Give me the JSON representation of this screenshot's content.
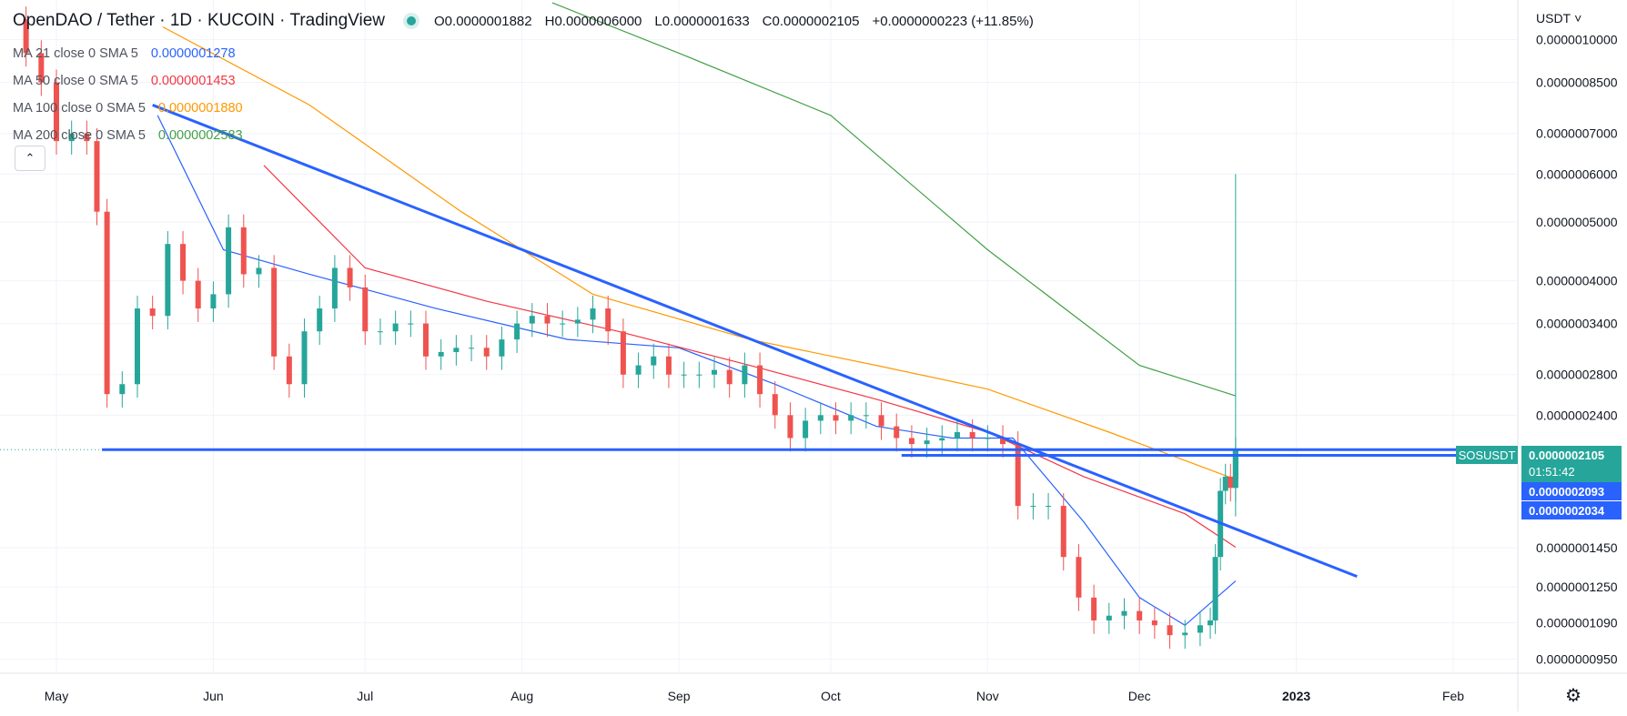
{
  "header": {
    "title": "OpenDAO / Tether · 1D · KUCOIN · TradingView",
    "ohlc": {
      "open": "O0.0000001882",
      "high": "H0.0000006000",
      "low": "L0.0000001633",
      "close": "C0.0000002105",
      "change": "+0.0000000223 (+11.85%)"
    },
    "currency": "USDT"
  },
  "legend": [
    {
      "label": "MA 21 close 0 SMA 5",
      "value": "0.0000001278",
      "color": "#2962ff"
    },
    {
      "label": "MA 50 close 0 SMA 5",
      "value": "0.0000001453",
      "color": "#f23645"
    },
    {
      "label": "MA 100 close 0 SMA 5",
      "value": "0.0000001880",
      "color": "#ff9800"
    },
    {
      "label": "MA 200 close 0 SMA 5",
      "value": "0.0000002583",
      "color": "#43a047"
    }
  ],
  "price_labels": {
    "symbol": "SOSUSDT",
    "last": "0.0000002105",
    "countdown": "01:51:42",
    "line1": "0.0000002093",
    "line2": "0.0000002034"
  },
  "chart_data": {
    "type": "candlestick",
    "y_scale": "log",
    "ylim": [
      9e-08,
      1.1e-06
    ],
    "y_ticks": [
      "0.0000010000",
      "0.0000008500",
      "0.0000007000",
      "0.0000006000",
      "0.0000005000",
      "0.0000004000",
      "0.0000003400",
      "0.0000002800",
      "0.0000002400",
      "0.0000001450",
      "0.0000001250",
      "0.0000001090",
      "0.0000000950"
    ],
    "x_ticks": [
      "May",
      "Jun",
      "Jul",
      "Aug",
      "Sep",
      "Oct",
      "Nov",
      "Dec",
      "2023",
      "Feb"
    ],
    "x_tick_dates": [
      "2022-05-01",
      "2022-06-01",
      "2022-07-01",
      "2022-08-01",
      "2022-09-01",
      "2022-10-01",
      "2022-11-01",
      "2022-12-01",
      "2023-01-01",
      "2023-02-01"
    ],
    "candles_close": [
      [
        "2022-04-22",
        1.08e-06
      ],
      [
        "2022-04-25",
        9.5e-07
      ],
      [
        "2022-04-28",
        8.5e-07
      ],
      [
        "2022-05-01",
        6.8e-07
      ],
      [
        "2022-05-04",
        7e-07
      ],
      [
        "2022-05-07",
        6.8e-07
      ],
      [
        "2022-05-09",
        5.2e-07
      ],
      [
        "2022-05-11",
        2.6e-07
      ],
      [
        "2022-05-14",
        2.7e-07
      ],
      [
        "2022-05-17",
        3.6e-07
      ],
      [
        "2022-05-20",
        3.5e-07
      ],
      [
        "2022-05-23",
        4.6e-07
      ],
      [
        "2022-05-26",
        4e-07
      ],
      [
        "2022-05-29",
        3.6e-07
      ],
      [
        "2022-06-01",
        3.8e-07
      ],
      [
        "2022-06-04",
        4.9e-07
      ],
      [
        "2022-06-07",
        4.1e-07
      ],
      [
        "2022-06-10",
        4.2e-07
      ],
      [
        "2022-06-13",
        3e-07
      ],
      [
        "2022-06-16",
        2.7e-07
      ],
      [
        "2022-06-19",
        3.3e-07
      ],
      [
        "2022-06-22",
        3.6e-07
      ],
      [
        "2022-06-25",
        4.2e-07
      ],
      [
        "2022-06-28",
        3.9e-07
      ],
      [
        "2022-07-01",
        3.3e-07
      ],
      [
        "2022-07-04",
        3.3e-07
      ],
      [
        "2022-07-07",
        3.4e-07
      ],
      [
        "2022-07-10",
        3.4e-07
      ],
      [
        "2022-07-13",
        3e-07
      ],
      [
        "2022-07-16",
        3.05e-07
      ],
      [
        "2022-07-19",
        3.1e-07
      ],
      [
        "2022-07-22",
        3.1e-07
      ],
      [
        "2022-07-25",
        3e-07
      ],
      [
        "2022-07-28",
        3.2e-07
      ],
      [
        "2022-07-31",
        3.4e-07
      ],
      [
        "2022-08-03",
        3.5e-07
      ],
      [
        "2022-08-06",
        3.4e-07
      ],
      [
        "2022-08-09",
        3.4e-07
      ],
      [
        "2022-08-12",
        3.45e-07
      ],
      [
        "2022-08-15",
        3.6e-07
      ],
      [
        "2022-08-18",
        3.3e-07
      ],
      [
        "2022-08-21",
        2.8e-07
      ],
      [
        "2022-08-24",
        2.9e-07
      ],
      [
        "2022-08-27",
        3e-07
      ],
      [
        "2022-08-30",
        2.8e-07
      ],
      [
        "2022-09-02",
        2.8e-07
      ],
      [
        "2022-09-05",
        2.8e-07
      ],
      [
        "2022-09-08",
        2.85e-07
      ],
      [
        "2022-09-11",
        2.7e-07
      ],
      [
        "2022-09-14",
        2.9e-07
      ],
      [
        "2022-09-17",
        2.6e-07
      ],
      [
        "2022-09-20",
        2.4e-07
      ],
      [
        "2022-09-23",
        2.2e-07
      ],
      [
        "2022-09-26",
        2.35e-07
      ],
      [
        "2022-09-29",
        2.4e-07
      ],
      [
        "2022-10-02",
        2.35e-07
      ],
      [
        "2022-10-05",
        2.4e-07
      ],
      [
        "2022-10-08",
        2.4e-07
      ],
      [
        "2022-10-11",
        2.3e-07
      ],
      [
        "2022-10-14",
        2.2e-07
      ],
      [
        "2022-10-17",
        2.15e-07
      ],
      [
        "2022-10-20",
        2.18e-07
      ],
      [
        "2022-10-23",
        2.2e-07
      ],
      [
        "2022-10-26",
        2.25e-07
      ],
      [
        "2022-10-29",
        2.2e-07
      ],
      [
        "2022-11-01",
        2.2e-07
      ],
      [
        "2022-11-04",
        2.15e-07
      ],
      [
        "2022-11-07",
        1.7e-07
      ],
      [
        "2022-11-10",
        1.7e-07
      ],
      [
        "2022-11-13",
        1.7e-07
      ],
      [
        "2022-11-16",
        1.4e-07
      ],
      [
        "2022-11-19",
        1.2e-07
      ],
      [
        "2022-11-22",
        1.1e-07
      ],
      [
        "2022-11-25",
        1.12e-07
      ],
      [
        "2022-11-28",
        1.14e-07
      ],
      [
        "2022-12-01",
        1.1e-07
      ],
      [
        "2022-12-04",
        1.08e-07
      ],
      [
        "2022-12-07",
        1.04e-07
      ],
      [
        "2022-12-10",
        1.05e-07
      ],
      [
        "2022-12-13",
        1.08e-07
      ],
      [
        "2022-12-15",
        1.1e-07
      ],
      [
        "2022-12-16",
        1.4e-07
      ],
      [
        "2022-12-17",
        1.8e-07
      ],
      [
        "2022-12-18",
        1.9e-07
      ],
      [
        "2022-12-19",
        1.82e-07
      ],
      [
        "2022-12-20",
        2.105e-07
      ]
    ],
    "last_candle": {
      "date": "2022-12-20",
      "open": 1.882e-07,
      "high": 6e-07,
      "low": 1.633e-07,
      "close": 2.105e-07
    },
    "ma_series": [
      {
        "name": "MA 21",
        "color": "#2962ff",
        "points": [
          [
            "2022-05-21",
            7.5e-07
          ],
          [
            "2022-06-03",
            4.5e-07
          ],
          [
            "2022-06-20",
            4.1e-07
          ],
          [
            "2022-07-15",
            3.6e-07
          ],
          [
            "2022-08-10",
            3.2e-07
          ],
          [
            "2022-09-01",
            3.1e-07
          ],
          [
            "2022-09-20",
            2.7e-07
          ],
          [
            "2022-10-10",
            2.3e-07
          ],
          [
            "2022-10-25",
            2.2e-07
          ],
          [
            "2022-11-06",
            2.2e-07
          ],
          [
            "2022-11-20",
            1.6e-07
          ],
          [
            "2022-12-01",
            1.2e-07
          ],
          [
            "2022-12-10",
            1.08e-07
          ],
          [
            "2022-12-20",
            1.278e-07
          ]
        ]
      },
      {
        "name": "MA 50",
        "color": "#f23645",
        "points": [
          [
            "2022-06-11",
            6.2e-07
          ],
          [
            "2022-07-01",
            4.2e-07
          ],
          [
            "2022-07-25",
            3.7e-07
          ],
          [
            "2022-08-20",
            3.3e-07
          ],
          [
            "2022-09-15",
            2.9e-07
          ],
          [
            "2022-10-10",
            2.55e-07
          ],
          [
            "2022-11-01",
            2.25e-07
          ],
          [
            "2022-11-20",
            1.9e-07
          ],
          [
            "2022-12-10",
            1.65e-07
          ],
          [
            "2022-12-20",
            1.453e-07
          ]
        ]
      },
      {
        "name": "MA 100",
        "color": "#ff9800",
        "points": [
          [
            "2022-05-22",
            1.05e-06
          ],
          [
            "2022-06-20",
            7.8e-07
          ],
          [
            "2022-07-20",
            5.2e-07
          ],
          [
            "2022-08-15",
            3.8e-07
          ],
          [
            "2022-09-15",
            3.2e-07
          ],
          [
            "2022-10-10",
            2.9e-07
          ],
          [
            "2022-11-01",
            2.65e-07
          ],
          [
            "2022-11-25",
            2.25e-07
          ],
          [
            "2022-12-20",
            1.88e-07
          ]
        ]
      },
      {
        "name": "MA 200",
        "color": "#43a047",
        "points": [
          [
            "2022-08-07",
            1.15e-06
          ],
          [
            "2022-09-01",
            9.5e-07
          ],
          [
            "2022-10-01",
            7.5e-07
          ],
          [
            "2022-11-01",
            4.5e-07
          ],
          [
            "2022-12-01",
            2.9e-07
          ],
          [
            "2022-12-20",
            2.583e-07
          ]
        ]
      }
    ],
    "trendlines": [
      {
        "from": [
          "2022-05-20",
          7.8e-07
        ],
        "to": [
          "2023-01-13",
          1.3e-07
        ]
      },
      {
        "from": [
          "2022-05-10",
          2.105e-07
        ],
        "to": [
          "2022-12-20",
          2.105e-07
        ]
      },
      {
        "from": [
          "2022-10-15",
          2.06e-07
        ],
        "to": [
          "2022-12-20",
          2.06e-07
        ]
      }
    ]
  }
}
